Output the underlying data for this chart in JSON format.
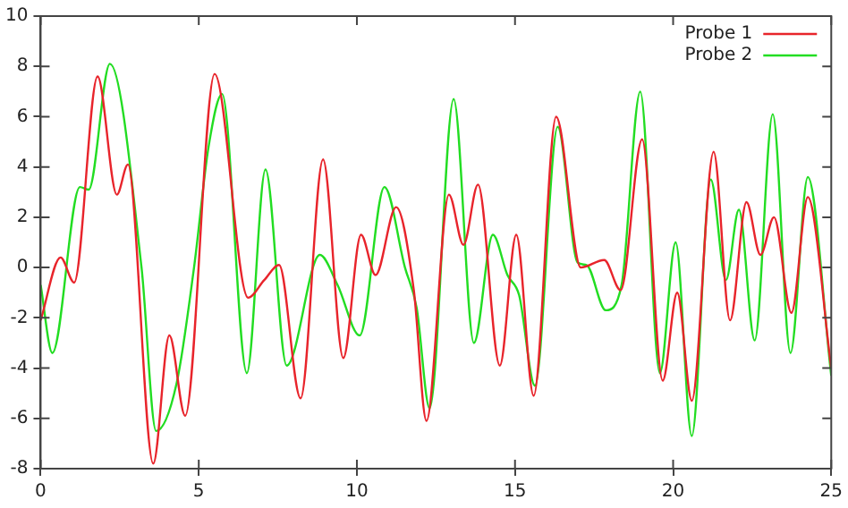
{
  "chart_data": {
    "type": "line",
    "xlim": [
      0,
      25
    ],
    "xticks": [
      0,
      5,
      10,
      15,
      20,
      25
    ],
    "ylim": [
      -8,
      10
    ],
    "yticks": [
      -8,
      -6,
      -4,
      -2,
      0,
      2,
      4,
      6,
      8,
      10
    ],
    "grid": false,
    "legend": "top right",
    "marker": "none",
    "line_style": "solid",
    "series": [
      {
        "name": "Probe 1",
        "color": "#e8242b",
        "x": [
          0,
          0.63,
          1.06,
          1.8,
          2.41,
          2.76,
          3.56,
          4.07,
          4.57,
          5.5,
          6.56,
          7.07,
          7.54,
          8.22,
          8.93,
          9.57,
          10.13,
          10.59,
          11.24,
          11.8,
          12.2,
          12.91,
          13.37,
          13.83,
          14.52,
          15.04,
          15.59,
          16.3,
          17.08,
          17.82,
          18.34,
          19.02,
          19.67,
          20.13,
          20.59,
          21.28,
          21.8,
          22.32,
          22.76,
          23.19,
          23.74,
          24.26,
          25
        ],
        "values": [
          -2.1,
          0.4,
          -0.6,
          7.6,
          2.9,
          4.1,
          -7.8,
          -2.7,
          -5.9,
          7.7,
          -1.2,
          -0.5,
          0.1,
          -5.2,
          4.3,
          -3.6,
          1.3,
          -0.3,
          2.4,
          -0.9,
          -6.1,
          2.9,
          0.9,
          3.3,
          -3.9,
          1.3,
          -5.1,
          6,
          0,
          0.3,
          -0.9,
          5.1,
          -4.5,
          -1,
          -5.3,
          4.6,
          -2.1,
          2.6,
          0.5,
          2,
          -1.8,
          2.8,
          -4
        ]
      },
      {
        "name": "Probe 2",
        "color": "#22dd22",
        "x": [
          0,
          0.37,
          1.24,
          1.52,
          2.19,
          3.19,
          3.65,
          4.3,
          4.85,
          5.31,
          5.74,
          6.52,
          7.11,
          7.78,
          8.83,
          9.39,
          10.09,
          10.87,
          11.52,
          11.89,
          12.3,
          13.06,
          13.7,
          14.3,
          14.76,
          15.13,
          15.63,
          16.35,
          16.98,
          17.26,
          17.87,
          18.37,
          18.96,
          19.58,
          20.08,
          20.59,
          21.19,
          21.67,
          22.08,
          22.58,
          23.15,
          23.71,
          24.26,
          25
        ],
        "values": [
          -0.7,
          -3.4,
          3.2,
          3.1,
          8.1,
          0,
          -6.5,
          -4.6,
          0,
          4.8,
          6.9,
          -4.2,
          3.9,
          -3.9,
          0.5,
          -0.7,
          -2.7,
          3.2,
          0,
          -1.6,
          -5.6,
          6.7,
          -3,
          1.3,
          -0.3,
          -1.1,
          -4.7,
          5.6,
          0.2,
          0.1,
          -1.7,
          -0.7,
          7,
          -4.2,
          1,
          -6.7,
          3.5,
          -0.5,
          2.3,
          -2.9,
          6.1,
          -3.4,
          3.6,
          -4.3
        ]
      }
    ]
  }
}
